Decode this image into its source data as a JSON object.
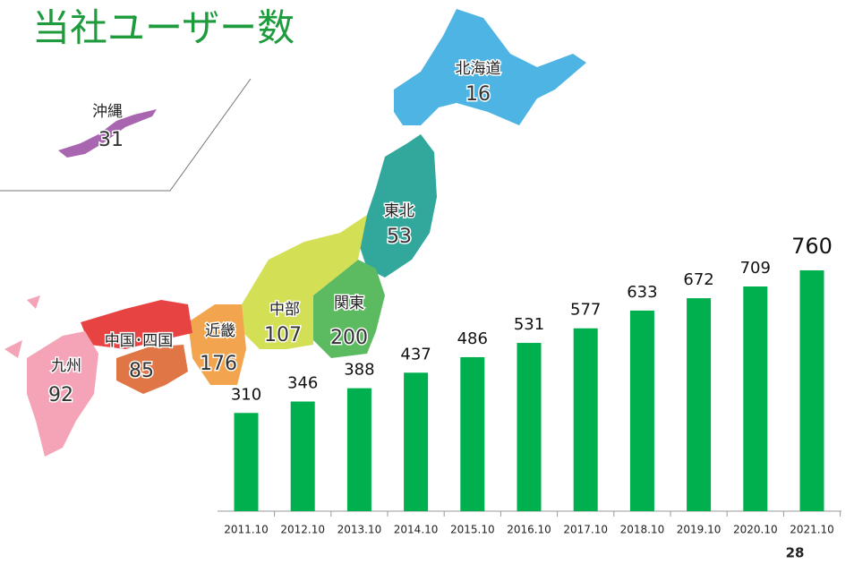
{
  "chart_data": {
    "type": "bar",
    "title": "当社ユーザー数",
    "categories": [
      "2011.10",
      "2012.10",
      "2013.10",
      "2014.10",
      "2015.10",
      "2016.10",
      "2017.10",
      "2018.10",
      "2019.10",
      "2020.10",
      "2021.10"
    ],
    "values": [
      310,
      346,
      388,
      437,
      486,
      531,
      577,
      633,
      672,
      709,
      760
    ],
    "color": "#00b04f"
  },
  "map": {
    "regions": [
      {
        "name": "北海道",
        "value": 16
      },
      {
        "name": "東北",
        "value": 53
      },
      {
        "name": "関東",
        "value": 200
      },
      {
        "name": "中部",
        "value": 107
      },
      {
        "name": "近畿",
        "value": 176
      },
      {
        "name": "中国･四国",
        "value": 85
      },
      {
        "name": "九州",
        "value": 92
      },
      {
        "name": "沖縄",
        "value": 31
      }
    ]
  },
  "page_number": "28"
}
